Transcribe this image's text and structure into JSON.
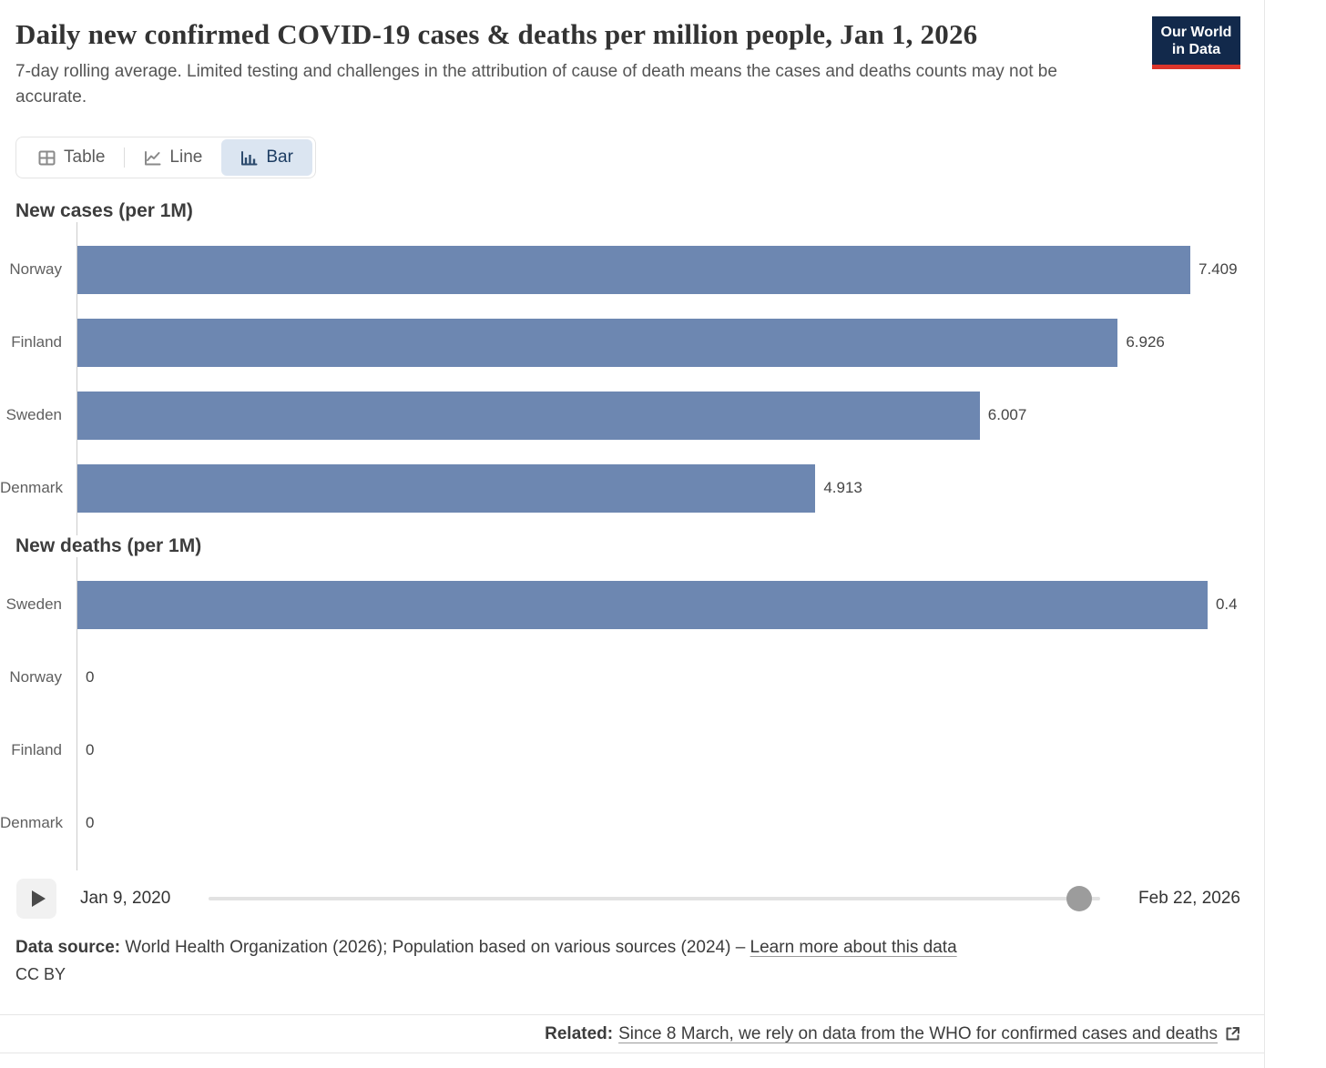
{
  "colors": {
    "bar": "#6d87b1",
    "accent_navy": "#1d3d63",
    "logo_background": "#12294b",
    "logo_red": "#dc352b",
    "axis": "#cccccc",
    "tab_active_bg": "#dbe5f1"
  },
  "header": {
    "title": "Daily new confirmed COVID-19 cases & deaths per million people, Jan 1, 2026",
    "subtitle": "7-day rolling average. Limited testing and challenges in the attribution of cause of death means the cases and deaths counts may not be accurate.",
    "logo_line1": "Our World",
    "logo_line2": "in Data"
  },
  "toolbar": {
    "tabs": [
      {
        "label": "Table",
        "icon": "table-icon",
        "active": false
      },
      {
        "label": "Line",
        "icon": "line-chart-icon",
        "active": false
      },
      {
        "label": "Bar",
        "icon": "bar-chart-icon",
        "active": true
      }
    ]
  },
  "chart_data": [
    {
      "type": "bar",
      "title": "New cases (per 1M)",
      "orientation": "horizontal",
      "categories": [
        "Norway",
        "Finland",
        "Sweden",
        "Denmark"
      ],
      "values": [
        7.409,
        6.926,
        6.007,
        4.913
      ],
      "value_labels": [
        "7.409",
        "6.926",
        "6.007",
        "4.913"
      ],
      "xlim": [
        0,
        7.9
      ],
      "grid": false,
      "legend": "none"
    },
    {
      "type": "bar",
      "title": "New deaths (per 1M)",
      "orientation": "horizontal",
      "categories": [
        "Sweden",
        "Norway",
        "Finland",
        "Denmark"
      ],
      "values": [
        0.4,
        0,
        0,
        0
      ],
      "value_labels": [
        "0.4",
        "0",
        "0",
        "0"
      ],
      "xlim": [
        0,
        0.42
      ],
      "grid": false,
      "legend": "none"
    }
  ],
  "timeline": {
    "play_icon": "play-icon",
    "start_date": "Jan 9, 2020",
    "end_date": "Feb 22, 2026",
    "handle_fraction": 0.976
  },
  "footer": {
    "source_label": "Data source:",
    "source_text": " World Health Organization (2026); Population based on various sources (2024) – ",
    "source_link": "Learn more about this data",
    "license": "CC BY"
  },
  "related": {
    "label": "Related:",
    "link": "Since 8 March, we rely on data from the WHO for confirmed cases and deaths",
    "external_icon": "external-link-icon"
  }
}
